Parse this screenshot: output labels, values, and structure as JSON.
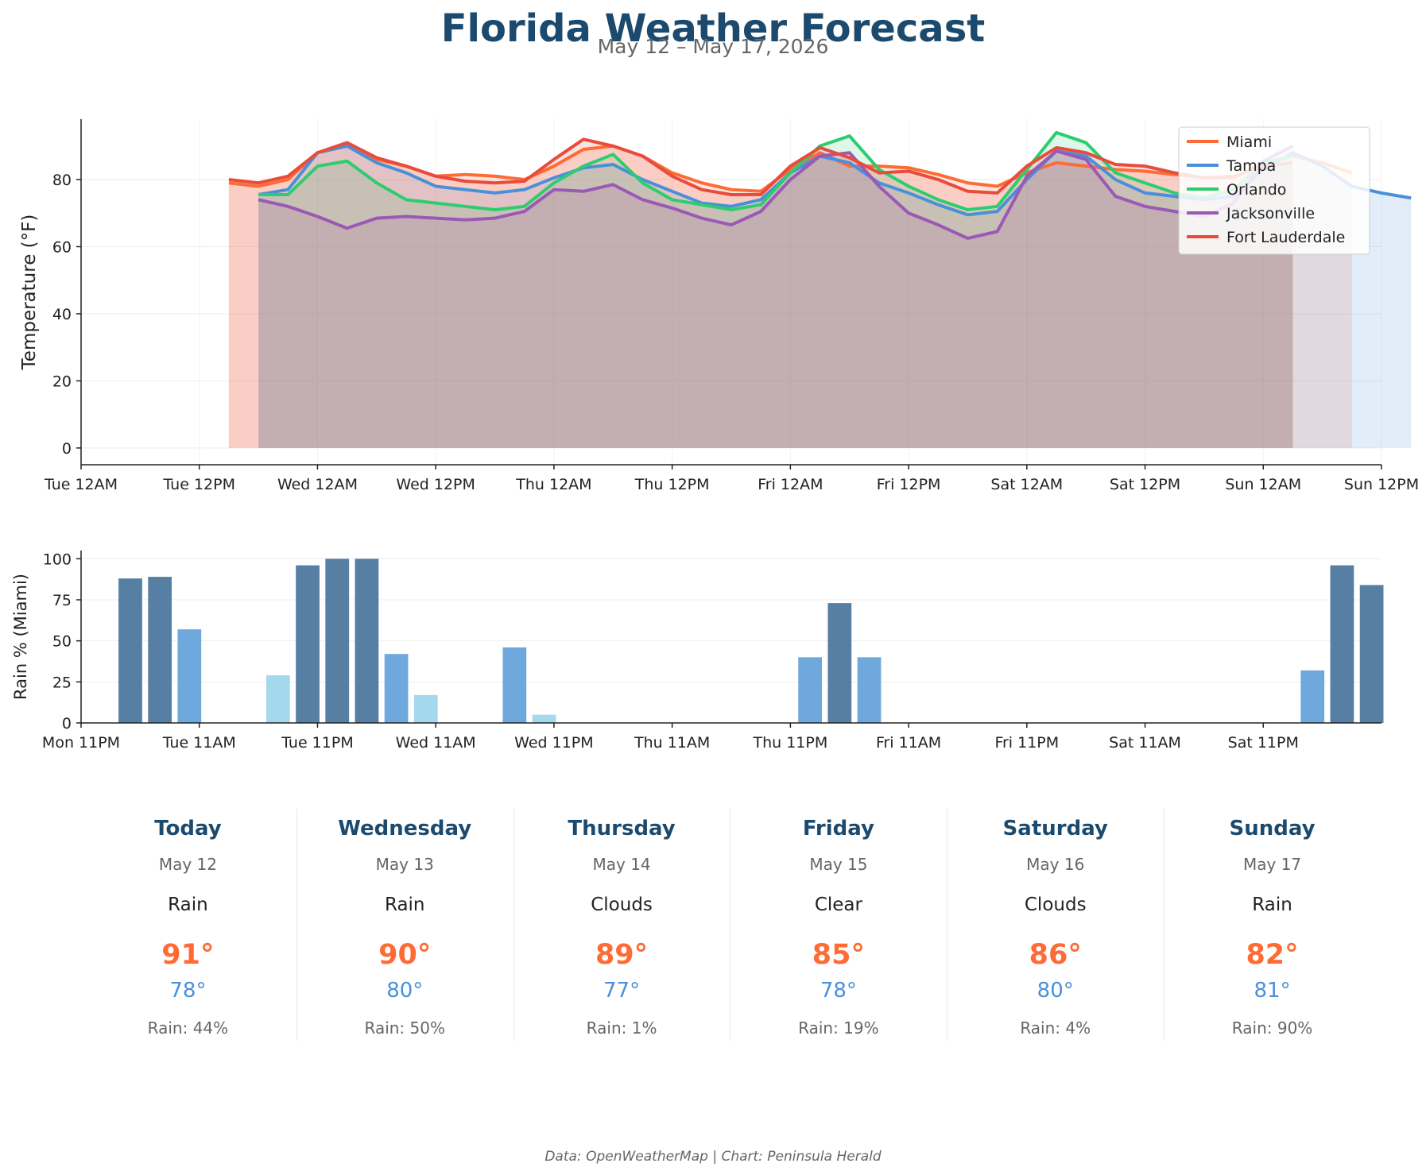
{
  "title": "Florida Weather Forecast",
  "subtitle": "May 12 – May 17, 2026",
  "footer": "Data: OpenWeatherMap | Chart: Peninsula Herald",
  "chart_data": [
    {
      "type": "line",
      "ylabel": "Temperature (°F)",
      "xlim": [
        "Tue 12AM",
        "Sun 12PM"
      ],
      "ylim": [
        -5,
        98
      ],
      "grid": true,
      "legend": "top-right",
      "area_fill": true,
      "x_tick_labels": [
        "Tue 12AM",
        "Tue 12PM",
        "Wed 12AM",
        "Wed 12PM",
        "Thu 12AM",
        "Thu 12PM",
        "Fri 12AM",
        "Fri 12PM",
        "Sat 12AM",
        "Sat 12PM",
        "Sun 12AM",
        "Sun 12PM"
      ],
      "y_ticks": [
        0,
        20,
        40,
        60,
        80
      ],
      "series": [
        {
          "name": "Miami",
          "color": "#ff6b35",
          "start_hour": 15,
          "values": [
            79,
            78,
            80,
            88,
            90,
            86,
            84,
            81,
            81.5,
            81,
            80,
            84,
            89,
            90,
            87,
            82,
            79,
            77,
            76.5,
            83,
            88,
            84,
            84,
            83.5,
            81.5,
            79,
            78,
            82,
            85,
            84,
            83,
            82.5,
            81.5,
            80.5,
            80.5,
            85,
            87,
            85,
            82
          ]
        },
        {
          "name": "Tampa",
          "color": "#4a90d9",
          "start_hour": 18,
          "values": [
            75.5,
            77,
            88,
            90,
            85,
            82,
            78,
            77,
            76,
            77,
            80.5,
            83.5,
            84.5,
            80,
            76.5,
            73,
            72,
            74,
            82,
            87,
            85,
            79,
            76,
            72.5,
            69.5,
            70.5,
            80,
            88.5,
            87,
            80,
            76,
            75,
            74,
            75,
            83,
            88,
            84,
            78,
            76,
            74.5
          ]
        },
        {
          "name": "Orlando",
          "color": "#2ecc71",
          "start_hour": 18,
          "values": [
            75.5,
            75.5,
            84,
            85.5,
            79,
            74,
            73,
            72,
            71,
            72,
            79,
            84,
            87.5,
            79,
            74,
            72.5,
            71,
            72.5,
            82,
            90,
            93,
            83,
            78,
            74,
            71,
            72,
            83,
            94,
            91,
            82,
            79,
            76,
            74.5,
            77,
            85,
            87
          ]
        },
        {
          "name": "Jacksonville",
          "color": "#9b59b6",
          "start_hour": 18,
          "values": [
            74,
            72,
            69,
            65.5,
            68.5,
            69,
            68.5,
            68,
            68.5,
            70.5,
            77,
            76.5,
            78.5,
            74,
            71.5,
            68.5,
            66.5,
            70.5,
            80,
            87,
            88,
            78,
            70,
            66.5,
            62.5,
            64.5,
            81,
            88.5,
            86,
            75,
            72,
            70.5,
            69,
            73,
            85.5,
            90
          ]
        },
        {
          "name": "Fort Lauderdale",
          "color": "#e74c3c",
          "start_hour": 15,
          "values": [
            80,
            79,
            81,
            88,
            91,
            86.5,
            84,
            81,
            79.5,
            79,
            79.5,
            86,
            92,
            90,
            87,
            81,
            77,
            75.5,
            75.5,
            84,
            89.5,
            86.5,
            82,
            82.5,
            80,
            76.5,
            76,
            84,
            89.5,
            88,
            84.5,
            84,
            82,
            80.5,
            81,
            84,
            85
          ]
        }
      ]
    },
    {
      "type": "bar",
      "ylabel": "Rain % (Miami)",
      "ylim": [
        0,
        105
      ],
      "grid": true,
      "x_tick_labels": [
        "Mon 11PM",
        "Tue 11AM",
        "Tue 11PM",
        "Wed 11AM",
        "Wed 11PM",
        "Thu 11AM",
        "Thu 11PM",
        "Fri 11AM",
        "Fri 11PM",
        "Sat 11AM",
        "Sat 11PM"
      ],
      "y_ticks": [
        0,
        25,
        50,
        75,
        100
      ],
      "bar_step_hours": 3,
      "bar_start_hour": 5,
      "colors": {
        "heavy": "#577fa3",
        "moderate": "#6fa8dc",
        "light": "#a4d8ed"
      },
      "values": [
        88,
        89,
        57,
        0,
        0,
        29,
        96,
        100,
        100,
        42,
        17,
        0,
        0,
        46,
        5,
        0,
        0,
        0,
        0,
        0,
        0,
        0,
        0,
        40,
        73,
        40,
        0,
        0,
        0,
        0,
        0,
        0,
        0,
        0,
        0,
        0,
        0,
        0,
        0,
        0,
        32,
        96,
        84
      ]
    }
  ],
  "forecast": [
    {
      "day": "Today",
      "date": "May 12",
      "condition": "Rain",
      "high": "91°",
      "low": "78°",
      "rain": "Rain: 44%"
    },
    {
      "day": "Wednesday",
      "date": "May 13",
      "condition": "Rain",
      "high": "90°",
      "low": "80°",
      "rain": "Rain: 50%"
    },
    {
      "day": "Thursday",
      "date": "May 14",
      "condition": "Clouds",
      "high": "89°",
      "low": "77°",
      "rain": "Rain: 1%"
    },
    {
      "day": "Friday",
      "date": "May 15",
      "condition": "Clear",
      "high": "85°",
      "low": "78°",
      "rain": "Rain: 19%"
    },
    {
      "day": "Saturday",
      "date": "May 16",
      "condition": "Clouds",
      "high": "86°",
      "low": "80°",
      "rain": "Rain: 4%"
    },
    {
      "day": "Sunday",
      "date": "May 17",
      "condition": "Rain",
      "high": "82°",
      "low": "81°",
      "rain": "Rain: 90%"
    }
  ]
}
